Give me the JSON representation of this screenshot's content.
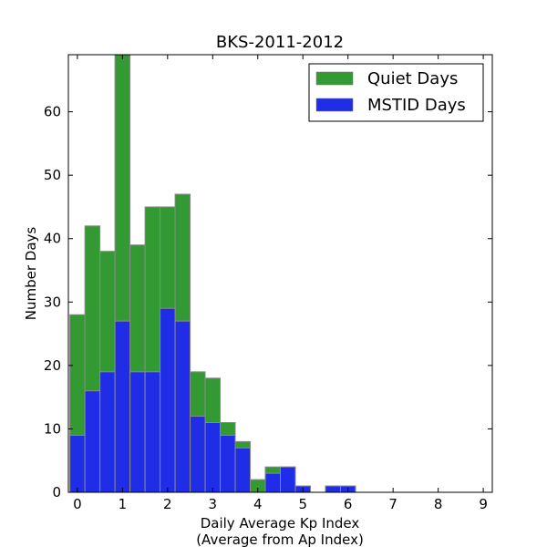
{
  "chart_data": {
    "type": "bar",
    "stacked": false,
    "overlay": true,
    "title": "BKS-2011-2012",
    "xlabel": "Daily Average Kp Index",
    "xlabel_line2": "(Average from Ap Index)",
    "ylabel": "Number Days",
    "xlim": [
      -0.2,
      9.2
    ],
    "ylim": [
      0,
      69
    ],
    "xticks": [
      "0",
      "1",
      "2",
      "3",
      "4",
      "5",
      "6",
      "7",
      "8",
      "9"
    ],
    "yticks": [
      "0",
      "10",
      "20",
      "30",
      "40",
      "50",
      "60"
    ],
    "bin_width": 0.3333,
    "bin_starts": [
      -0.1667,
      0.1667,
      0.5,
      0.8333,
      1.1667,
      1.5,
      1.8333,
      2.1667,
      2.5,
      2.8333,
      3.1667,
      3.5,
      3.8333,
      4.1667,
      4.5,
      4.8333,
      5.1667,
      5.5,
      5.8333
    ],
    "series": [
      {
        "name": "Quiet Days",
        "color": "#339933",
        "values": [
          28,
          42,
          38,
          70,
          39,
          45,
          45,
          47,
          19,
          18,
          11,
          8,
          2,
          4,
          4,
          1,
          0,
          1,
          1
        ]
      },
      {
        "name": "MSTID Days",
        "color": "#1f2ee6",
        "values": [
          9,
          16,
          19,
          27,
          19,
          19,
          29,
          27,
          12,
          11,
          9,
          7,
          0,
          3,
          4,
          1,
          0,
          1,
          1
        ]
      }
    ],
    "legend_position": "top-right",
    "grid": false
  }
}
